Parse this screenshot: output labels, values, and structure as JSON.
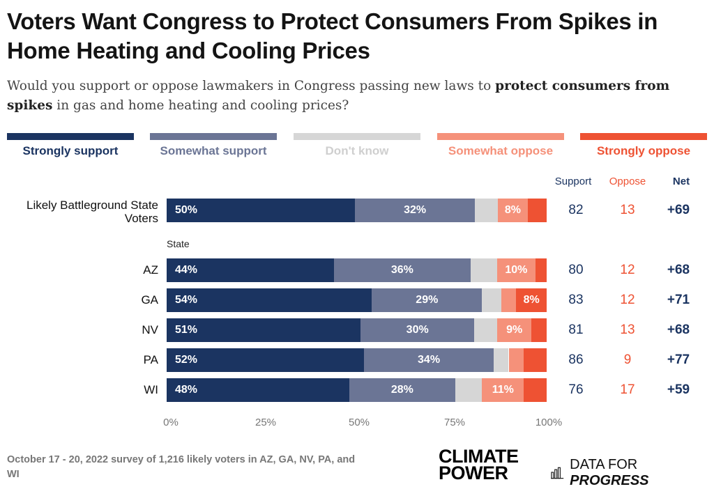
{
  "title": "Voters Want Congress to Protect Consumers From Spikes in Home Heating and Cooling Prices",
  "subtitle": {
    "part1": "Would you support or oppose lawmakers in Congress passing new laws to ",
    "bold": "protect consumers from spikes",
    "part2": " in gas and home heating and cooling prices?"
  },
  "colors": {
    "strongly_support": "#1b3461",
    "somewhat_support": "#6b7595",
    "dont_know": "#d6d6d6",
    "somewhat_oppose": "#f5917a",
    "strongly_oppose": "#ee5233",
    "support_text": "#1b3461",
    "oppose_text": "#ee5233"
  },
  "chart_data": {
    "type": "bar",
    "orientation": "horizontal-stacked",
    "legend": [
      "Strongly support",
      "Somewhat support",
      "Don't know",
      "Somewhat oppose",
      "Strongly oppose"
    ],
    "legend_position": "top",
    "x_ticks": [
      "0%",
      "25%",
      "50%",
      "75%",
      "100%"
    ],
    "xlim": [
      0,
      100
    ],
    "columns": {
      "support": "Support",
      "oppose": "Oppose",
      "net": "Net"
    },
    "group_label": "State",
    "rows": [
      {
        "label": "Likely Battleground State Voters",
        "values": [
          50,
          32,
          6,
          8,
          5
        ],
        "labels": [
          "50%",
          "32%",
          "",
          "8%",
          ""
        ],
        "support": "82",
        "oppose": "13",
        "net": "+69"
      },
      {
        "label": "AZ",
        "values": [
          44,
          36,
          7,
          10,
          3
        ],
        "labels": [
          "44%",
          "36%",
          "",
          "10%",
          ""
        ],
        "support": "80",
        "oppose": "12",
        "net": "+68"
      },
      {
        "label": "GA",
        "values": [
          54,
          29,
          5,
          4,
          8
        ],
        "labels": [
          "54%",
          "29%",
          "",
          "",
          "8%"
        ],
        "support": "83",
        "oppose": "12",
        "net": "+71"
      },
      {
        "label": "NV",
        "values": [
          51,
          30,
          6,
          9,
          4
        ],
        "labels": [
          "51%",
          "30%",
          "",
          "9%",
          ""
        ],
        "support": "81",
        "oppose": "13",
        "net": "+68"
      },
      {
        "label": "PA",
        "values": [
          52,
          34,
          4,
          4,
          6
        ],
        "labels": [
          "52%",
          "34%",
          "",
          "",
          ""
        ],
        "support": "86",
        "oppose": "9",
        "net": "+77"
      },
      {
        "label": "WI",
        "values": [
          48,
          28,
          7,
          11,
          6
        ],
        "labels": [
          "48%",
          "28%",
          "",
          "11%",
          ""
        ],
        "support": "76",
        "oppose": "17",
        "net": "+59"
      }
    ]
  },
  "footnote": "October 17 - 20, 2022 survey of 1,216 likely voters in AZ, GA, NV, PA, and WI",
  "logos": {
    "climate_power_line1": "CLIMATE",
    "climate_power_line2": "POWER",
    "dfp_plain": "DATA FOR",
    "dfp_em": "PROGRESS"
  }
}
